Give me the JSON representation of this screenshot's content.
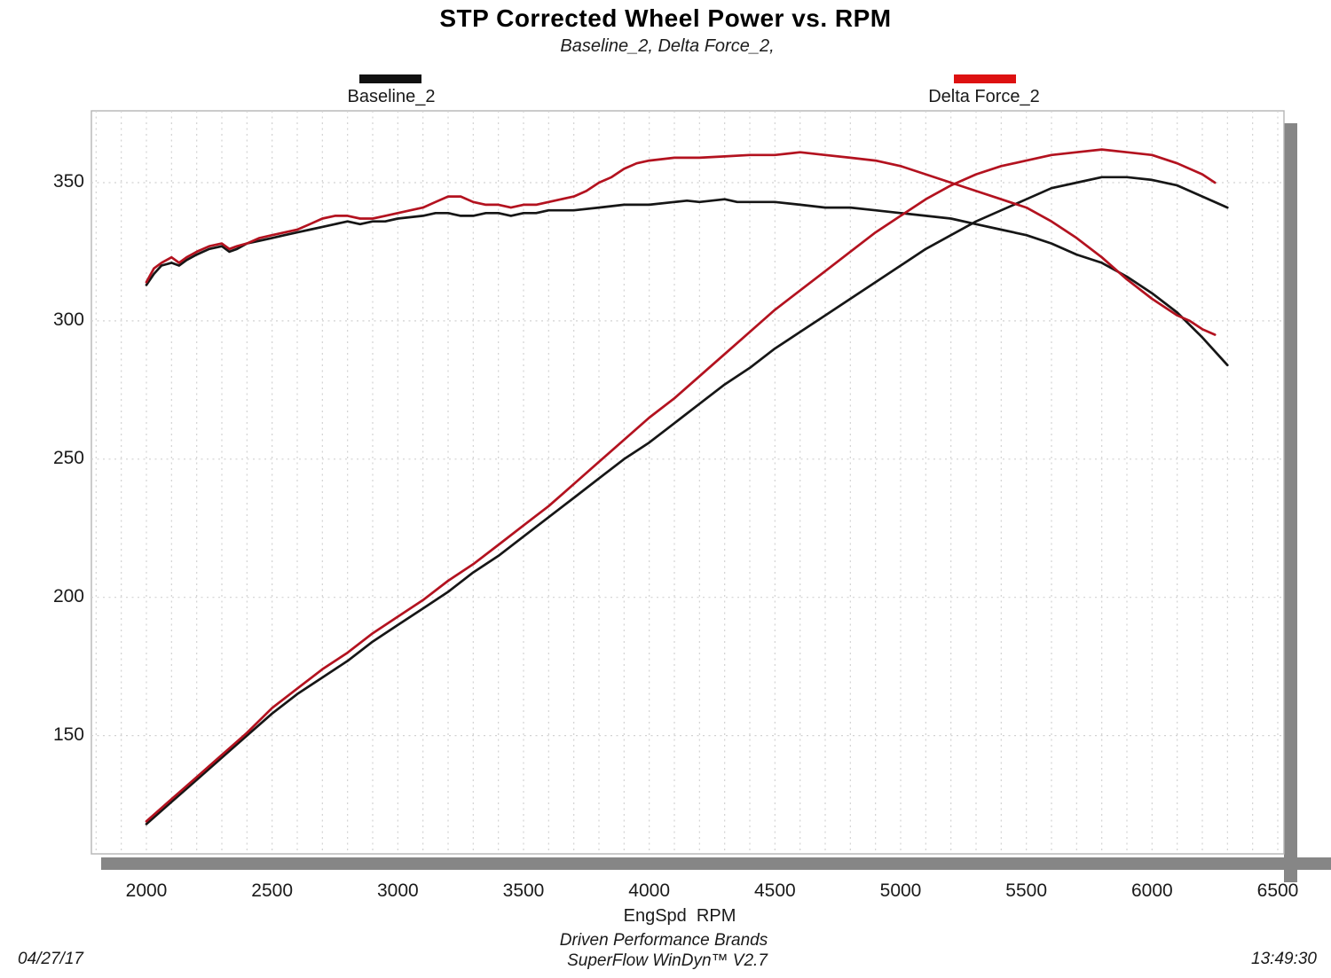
{
  "title": "STP Corrected Wheel Power vs. RPM",
  "subtitle": "Baseline_2, Delta Force_2,",
  "legend": [
    {
      "label": "Baseline_2",
      "color": "#111111"
    },
    {
      "label": "Delta Force_2",
      "color": "#dd1111"
    }
  ],
  "footer": {
    "brand_line": "Driven Performance Brands",
    "software_line": "SuperFlow WinDyn™ V2.7",
    "date": "04/27/17",
    "time": "13:49:30"
  },
  "colors": {
    "black_curve": "#161616",
    "red_curve": "#b3121f",
    "grid": "#d2d2d2",
    "plot_border": "#b5b5b5",
    "shadow": "#868686"
  },
  "chart_data": {
    "type": "line",
    "title": "STP Corrected Wheel Power vs. RPM",
    "subtitle": "Baseline_2, Delta Force_2,",
    "xlabel": "EngSpd  RPM",
    "ylabel": "",
    "x_ticks": [
      2000,
      2500,
      3000,
      3500,
      4000,
      4500,
      5000,
      5500,
      6000,
      6500
    ],
    "y_ticks": [
      150,
      200,
      250,
      300,
      350
    ],
    "xlim": [
      1780,
      6525
    ],
    "ylim": [
      107,
      376
    ],
    "grid": {
      "vertical_every_rpm": 100,
      "horizontal_every": 50,
      "style": "dashed"
    },
    "legend_position": "above-plot",
    "series": [
      {
        "name": "Baseline_2",
        "role": "power-curve (rising)",
        "color": "#161616",
        "points": [
          [
            2000,
            118
          ],
          [
            2100,
            126
          ],
          [
            2200,
            134
          ],
          [
            2300,
            142
          ],
          [
            2400,
            150
          ],
          [
            2500,
            158
          ],
          [
            2600,
            165
          ],
          [
            2700,
            171
          ],
          [
            2800,
            177
          ],
          [
            2900,
            184
          ],
          [
            3000,
            190
          ],
          [
            3100,
            196
          ],
          [
            3200,
            202
          ],
          [
            3300,
            209
          ],
          [
            3400,
            215
          ],
          [
            3500,
            222
          ],
          [
            3600,
            229
          ],
          [
            3700,
            236
          ],
          [
            3800,
            243
          ],
          [
            3900,
            250
          ],
          [
            4000,
            256
          ],
          [
            4100,
            263
          ],
          [
            4200,
            270
          ],
          [
            4300,
            277
          ],
          [
            4400,
            283
          ],
          [
            4500,
            290
          ],
          [
            4600,
            296
          ],
          [
            4700,
            302
          ],
          [
            4800,
            308
          ],
          [
            4900,
            314
          ],
          [
            5000,
            320
          ],
          [
            5100,
            326
          ],
          [
            5200,
            331
          ],
          [
            5300,
            336
          ],
          [
            5400,
            340
          ],
          [
            5500,
            344
          ],
          [
            5600,
            348
          ],
          [
            5700,
            350
          ],
          [
            5800,
            352
          ],
          [
            5900,
            352
          ],
          [
            6000,
            351
          ],
          [
            6100,
            349
          ],
          [
            6200,
            345
          ],
          [
            6300,
            341
          ]
        ]
      },
      {
        "name": "Baseline_2",
        "role": "upper-curve (torque)",
        "color": "#161616",
        "points": [
          [
            2000,
            313
          ],
          [
            2030,
            317
          ],
          [
            2060,
            320
          ],
          [
            2100,
            321
          ],
          [
            2130,
            320
          ],
          [
            2160,
            322
          ],
          [
            2200,
            324
          ],
          [
            2250,
            326
          ],
          [
            2300,
            327
          ],
          [
            2330,
            325
          ],
          [
            2360,
            326
          ],
          [
            2400,
            328
          ],
          [
            2450,
            329
          ],
          [
            2500,
            330
          ],
          [
            2550,
            331
          ],
          [
            2600,
            332
          ],
          [
            2650,
            333
          ],
          [
            2700,
            334
          ],
          [
            2750,
            335
          ],
          [
            2800,
            336
          ],
          [
            2850,
            335
          ],
          [
            2900,
            336
          ],
          [
            2950,
            336
          ],
          [
            3000,
            337
          ],
          [
            3100,
            338
          ],
          [
            3150,
            339
          ],
          [
            3200,
            339
          ],
          [
            3250,
            338
          ],
          [
            3300,
            338
          ],
          [
            3350,
            339
          ],
          [
            3400,
            339
          ],
          [
            3450,
            338
          ],
          [
            3500,
            339
          ],
          [
            3550,
            339
          ],
          [
            3600,
            340
          ],
          [
            3700,
            340
          ],
          [
            3800,
            341
          ],
          [
            3900,
            342
          ],
          [
            4000,
            342
          ],
          [
            4100,
            343
          ],
          [
            4150,
            343.5
          ],
          [
            4200,
            343
          ],
          [
            4300,
            344
          ],
          [
            4350,
            343
          ],
          [
            4400,
            343
          ],
          [
            4500,
            343
          ],
          [
            4600,
            342
          ],
          [
            4700,
            341
          ],
          [
            4800,
            341
          ],
          [
            4900,
            340
          ],
          [
            5000,
            339
          ],
          [
            5100,
            338
          ],
          [
            5200,
            337
          ],
          [
            5300,
            335
          ],
          [
            5400,
            333
          ],
          [
            5500,
            331
          ],
          [
            5600,
            328
          ],
          [
            5700,
            324
          ],
          [
            5800,
            321
          ],
          [
            5900,
            316
          ],
          [
            6000,
            310
          ],
          [
            6100,
            303
          ],
          [
            6200,
            294
          ],
          [
            6300,
            284
          ]
        ]
      },
      {
        "name": "Delta Force_2",
        "role": "power-curve (rising)",
        "color": "#b3121f",
        "points": [
          [
            2000,
            119
          ],
          [
            2100,
            127
          ],
          [
            2200,
            135
          ],
          [
            2300,
            143
          ],
          [
            2400,
            151
          ],
          [
            2500,
            160
          ],
          [
            2600,
            167
          ],
          [
            2700,
            174
          ],
          [
            2800,
            180
          ],
          [
            2900,
            187
          ],
          [
            3000,
            193
          ],
          [
            3100,
            199
          ],
          [
            3200,
            206
          ],
          [
            3300,
            212
          ],
          [
            3400,
            219
          ],
          [
            3500,
            226
          ],
          [
            3600,
            233
          ],
          [
            3700,
            241
          ],
          [
            3800,
            249
          ],
          [
            3900,
            257
          ],
          [
            4000,
            265
          ],
          [
            4100,
            272
          ],
          [
            4200,
            280
          ],
          [
            4300,
            288
          ],
          [
            4400,
            296
          ],
          [
            4500,
            304
          ],
          [
            4600,
            311
          ],
          [
            4700,
            318
          ],
          [
            4800,
            325
          ],
          [
            4900,
            332
          ],
          [
            5000,
            338
          ],
          [
            5100,
            344
          ],
          [
            5200,
            349
          ],
          [
            5300,
            353
          ],
          [
            5400,
            356
          ],
          [
            5500,
            358
          ],
          [
            5600,
            360
          ],
          [
            5700,
            361
          ],
          [
            5800,
            362
          ],
          [
            5900,
            361
          ],
          [
            6000,
            360
          ],
          [
            6100,
            357
          ],
          [
            6200,
            353
          ],
          [
            6250,
            350
          ]
        ]
      },
      {
        "name": "Delta Force_2",
        "role": "upper-curve (torque)",
        "color": "#b3121f",
        "points": [
          [
            2000,
            314
          ],
          [
            2030,
            319
          ],
          [
            2060,
            321
          ],
          [
            2100,
            323
          ],
          [
            2130,
            321
          ],
          [
            2160,
            323
          ],
          [
            2200,
            325
          ],
          [
            2250,
            327
          ],
          [
            2300,
            328
          ],
          [
            2330,
            326
          ],
          [
            2360,
            327
          ],
          [
            2400,
            328
          ],
          [
            2450,
            330
          ],
          [
            2500,
            331
          ],
          [
            2550,
            332
          ],
          [
            2600,
            333
          ],
          [
            2650,
            335
          ],
          [
            2700,
            337
          ],
          [
            2750,
            338
          ],
          [
            2800,
            338
          ],
          [
            2850,
            337
          ],
          [
            2900,
            337
          ],
          [
            2950,
            338
          ],
          [
            3000,
            339
          ],
          [
            3050,
            340
          ],
          [
            3100,
            341
          ],
          [
            3150,
            343
          ],
          [
            3200,
            345
          ],
          [
            3250,
            345
          ],
          [
            3300,
            343
          ],
          [
            3350,
            342
          ],
          [
            3400,
            342
          ],
          [
            3450,
            341
          ],
          [
            3500,
            342
          ],
          [
            3550,
            342
          ],
          [
            3600,
            343
          ],
          [
            3650,
            344
          ],
          [
            3700,
            345
          ],
          [
            3750,
            347
          ],
          [
            3800,
            350
          ],
          [
            3850,
            352
          ],
          [
            3900,
            355
          ],
          [
            3950,
            357
          ],
          [
            4000,
            358
          ],
          [
            4100,
            359
          ],
          [
            4200,
            359
          ],
          [
            4300,
            359.5
          ],
          [
            4400,
            360
          ],
          [
            4500,
            360
          ],
          [
            4600,
            361
          ],
          [
            4700,
            360
          ],
          [
            4800,
            359
          ],
          [
            4900,
            358
          ],
          [
            5000,
            356
          ],
          [
            5100,
            353
          ],
          [
            5200,
            350
          ],
          [
            5300,
            347
          ],
          [
            5400,
            344
          ],
          [
            5500,
            341
          ],
          [
            5600,
            336
          ],
          [
            5700,
            330
          ],
          [
            5800,
            323
          ],
          [
            5900,
            315
          ],
          [
            6000,
            308
          ],
          [
            6100,
            302
          ],
          [
            6150,
            300
          ],
          [
            6200,
            297
          ],
          [
            6250,
            295
          ]
        ]
      }
    ]
  }
}
